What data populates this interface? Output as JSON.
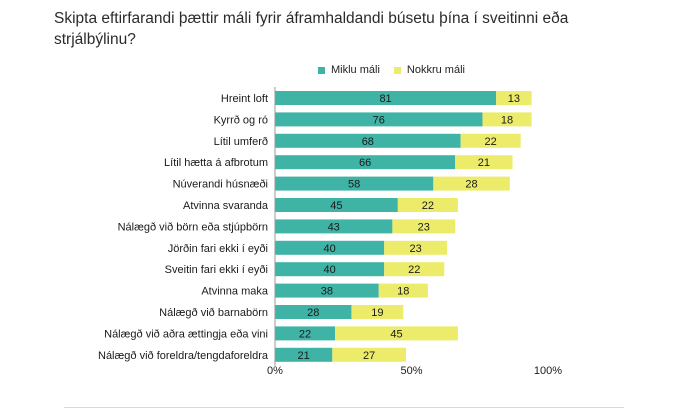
{
  "chart_data": {
    "type": "bar",
    "orientation": "horizontal",
    "stacked": true,
    "title": "Skipta eftirfarandi þættir máli fyrir áframhaldandi búsetu þína í sveitinni eða strjálbýlinu?",
    "categories": [
      "Hreint loft",
      "Kyrrð og ró",
      "Lítil umferð",
      "Lítil hætta á afbrotum",
      "Núverandi húsnæði",
      "Atvinna svaranda",
      "Nálægð við börn eða stjúpbörn",
      "Jörðin fari ekki í eyði",
      "Sveitin fari ekki í eyði",
      "Atvinna maka",
      "Nálægð við barnabörn",
      "Nálægð við aðra ættingja eða vini",
      "Nálægð við foreldra/tengdaforeldra"
    ],
    "series": [
      {
        "name": "Miklu máli",
        "color": "#3fb3a6",
        "values": [
          81,
          76,
          68,
          66,
          58,
          45,
          43,
          40,
          40,
          38,
          28,
          22,
          21
        ]
      },
      {
        "name": "Nokkru máli",
        "color": "#ecec6a",
        "values": [
          13,
          18,
          22,
          21,
          28,
          22,
          23,
          23,
          22,
          18,
          19,
          45,
          27
        ]
      }
    ],
    "xlim": [
      0,
      100
    ],
    "xticks": [
      "0%",
      "50%",
      "100%"
    ],
    "legend": "top",
    "grid": false
  }
}
